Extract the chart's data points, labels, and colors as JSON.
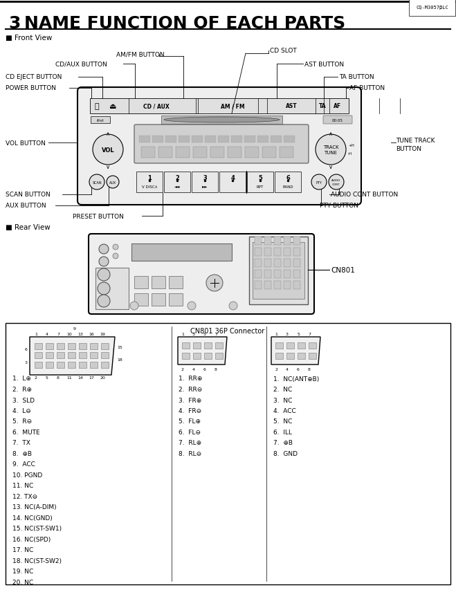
{
  "title_num": "3",
  "title_text": "NAME FUNCTION OF EACH PARTS",
  "page_code": "CQ-M3057βLC",
  "bg_color": "#ffffff",
  "border_color": "#000000",
  "front_view_label": "■ Front View",
  "rear_view_label": "■ Rear View",
  "cn801_label": "CN801",
  "connector_title": "CN801 36P Connector",
  "pin_list_col1": [
    "1.  L⊕",
    "2.  R⊕",
    "3.  SLD",
    "4.  L⊖",
    "5.  R⊖",
    "6.  MUTE",
    "7.  TX",
    "8.  ⊕B",
    "9.  ACC",
    "10. PGND",
    "11. NC",
    "12. TX⊖",
    "13. NC(A-DIM)",
    "14. NC(GND)",
    "15. NC(ST-SW1)",
    "16. NC(SPD)",
    "17. NC",
    "18. NC(ST-SW2)",
    "19. NC",
    "20. NC"
  ],
  "pin_list_col2": [
    "1.  RR⊕",
    "2.  RR⊖",
    "3.  FR⊕",
    "4.  FR⊖",
    "5.  FL⊕",
    "6.  FL⊖",
    "7.  RL⊕",
    "8.  RL⊖"
  ],
  "pin_list_col3": [
    "1.  NC(ANT⊕B)",
    "2.  NC",
    "3.  NC",
    "4.  ACC",
    "5.  NC",
    "6.  ILL",
    "7.  ⊕B",
    "8.  GND"
  ]
}
